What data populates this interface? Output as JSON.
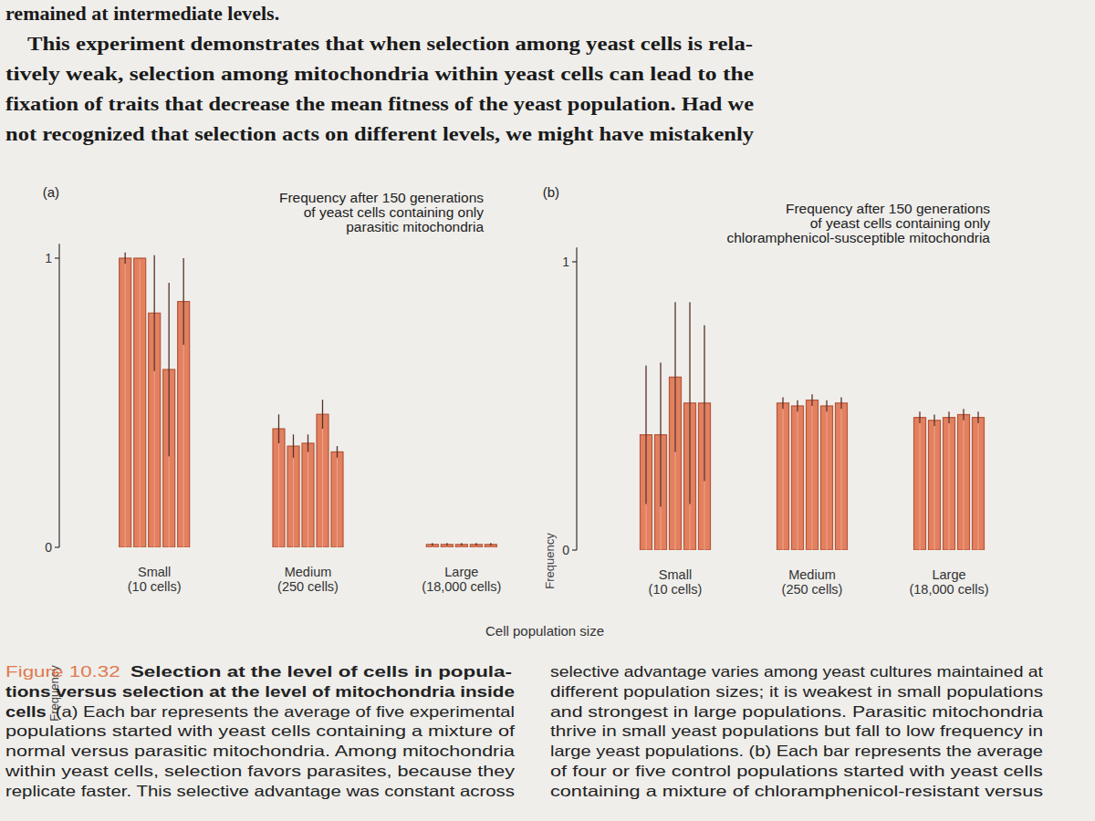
{
  "body": {
    "lines": [
      "remained at intermediate levels.",
      "This experiment demonstrates that when selection among yeast cells is rela-",
      "tively weak, selection among mitochondria within yeast cells can lead to the",
      "fixation of traits that decrease the mean fitness of the yeast population. Had we",
      "not recognized that selection acts on different levels, we might have mistakenly"
    ]
  },
  "chart_data": [
    {
      "type": "bar",
      "panel": "(a)",
      "title": "Frequency after 150 generations\nof yeast cells containing only\nparasitic mitochondria",
      "ylabel": "Frequency",
      "categories": [
        "Small\n(10 cells)",
        "Medium\n(250 cells)",
        "Large\n(18,000 cells)"
      ],
      "ylim": [
        0,
        1.05
      ],
      "yticks": [
        0,
        1
      ],
      "series": [
        {
          "color": "#e2805f",
          "values": [
            1.0,
            0.41,
            0.01
          ],
          "error": [
            0.02,
            0.05,
            0.005
          ]
        },
        {
          "color": "#e2805f",
          "values": [
            1.0,
            0.35,
            0.01
          ],
          "error": [
            0.0,
            0.04,
            0.005
          ]
        },
        {
          "color": "#e2805f",
          "values": [
            0.81,
            0.36,
            0.01
          ],
          "error": [
            0.2,
            0.03,
            0.005
          ]
        },
        {
          "color": "#e2805f",
          "values": [
            0.615,
            0.46,
            0.01
          ],
          "error": [
            0.3,
            0.05,
            0.005
          ]
        },
        {
          "color": "#e2805f",
          "values": [
            0.85,
            0.33,
            0.01
          ],
          "error": [
            0.15,
            0.02,
            0.005
          ]
        }
      ]
    },
    {
      "type": "bar",
      "panel": "(b)",
      "title": "Frequency after 150 generations\nof yeast cells containing only\nchloramphenicol-susceptible mitochondria",
      "ylabel": "Frequency",
      "categories": [
        "Small\n(10 cells)",
        "Medium\n(250 cells)",
        "Large\n(18,000 cells)"
      ],
      "ylim": [
        0,
        1.05
      ],
      "yticks": [
        0,
        1
      ],
      "series": [
        {
          "color": "#e2805f",
          "values": [
            0.4,
            0.51,
            0.46
          ],
          "error": [
            0.24,
            0.02,
            0.02
          ]
        },
        {
          "color": "#e2805f",
          "values": [
            0.4,
            0.5,
            0.45
          ],
          "error": [
            0.25,
            0.02,
            0.02
          ]
        },
        {
          "color": "#e2805f",
          "values": [
            0.6,
            0.52,
            0.46
          ],
          "error": [
            0.26,
            0.02,
            0.02
          ]
        },
        {
          "color": "#e2805f",
          "values": [
            0.51,
            0.5,
            0.47
          ],
          "error": [
            0.35,
            0.02,
            0.02
          ]
        },
        {
          "color": "#e2805f",
          "values": [
            0.51,
            0.51,
            0.46
          ],
          "error": [
            0.27,
            0.02,
            0.02
          ]
        }
      ]
    }
  ],
  "shared_xlabel": "Cell population size",
  "caption": {
    "label": "Figure 10.32",
    "left": [
      {
        "bold": "Selection at the level of cells in popula-",
        "text": ""
      },
      {
        "bold": "tions versus selection at the level of mitochondria inside",
        "text": ""
      },
      {
        "bold": "cells",
        "text": "(a) Each bar represents the average of five experimental"
      },
      {
        "bold": "",
        "text": "populations started with yeast cells containing a mixture of"
      },
      {
        "bold": "",
        "text": "normal versus parasitic mitochondria. Among mitochondria"
      },
      {
        "bold": "",
        "text": "within yeast cells, selection favors parasites, because they"
      },
      {
        "bold": "",
        "text": "replicate faster. This selective advantage was constant across"
      }
    ],
    "right": [
      "selective advantage varies among yeast cultures maintained at",
      "different population sizes; it is weakest in small populations",
      "and strongest in large populations. Parasitic mitochondria",
      "thrive in small yeast populations but fall to low frequency in",
      "large yeast populations. (b) Each bar represents the average",
      "of four or five control populations started with yeast cells",
      "containing a mixture of chloramphenicol-resistant versus"
    ]
  }
}
